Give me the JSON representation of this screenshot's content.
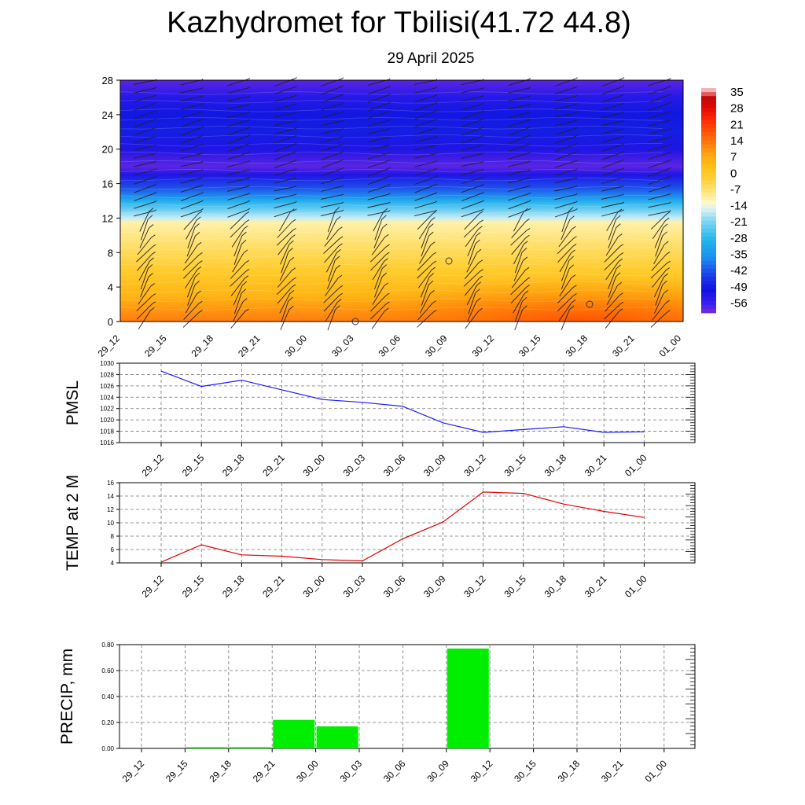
{
  "page": {
    "title": "Kazhydromet for Tbilisi(41.72 44.8)",
    "subtitle": "29 April 2025"
  },
  "time_labels": [
    "29_12",
    "29_15",
    "29_18",
    "29_21",
    "30_00",
    "30_03",
    "30_06",
    "30_09",
    "30_12",
    "30_15",
    "30_18",
    "30_21",
    "01_00"
  ],
  "chart_data": [
    {
      "type": "heatmap",
      "description_of_values": "temperature cross-section with wind barbs",
      "x_categories": [
        "29_12",
        "29_15",
        "29_18",
        "29_21",
        "30_00",
        "30_03",
        "30_06",
        "30_09",
        "30_12",
        "30_15",
        "30_18",
        "30_21",
        "01_00"
      ],
      "y_ticks": [
        0,
        4,
        8,
        12,
        16,
        20,
        24,
        28
      ],
      "ylim": [
        0,
        28
      ],
      "colorbar_ticks": [
        35,
        28,
        21,
        14,
        7,
        0,
        -7,
        -14,
        -21,
        -28,
        -35,
        -42,
        -49,
        -56
      ],
      "colorbar_range": [
        -60,
        38
      ],
      "grid": false
    },
    {
      "type": "line",
      "ylabel": "PMSL",
      "categories": [
        "29_12",
        "29_15",
        "29_18",
        "29_21",
        "30_00",
        "30_03",
        "30_06",
        "30_09",
        "30_12",
        "30_15",
        "30_18",
        "30_21",
        "01_00"
      ],
      "values": [
        1028.6,
        1025.9,
        1027.0,
        1025.3,
        1023.6,
        1023.1,
        1022.4,
        1019.5,
        1017.8,
        1018.3,
        1018.8,
        1017.8,
        1017.9
      ],
      "ylim": [
        1016,
        1030
      ],
      "y_ticks": [
        1016,
        1018,
        1020,
        1022,
        1024,
        1026,
        1028,
        1030
      ],
      "line_color": "#1a1aff",
      "grid": true
    },
    {
      "type": "line",
      "ylabel": "TEMP at 2 M",
      "categories": [
        "29_12",
        "29_15",
        "29_18",
        "29_21",
        "30_00",
        "30_03",
        "30_06",
        "30_09",
        "30_12",
        "30_15",
        "30_18",
        "30_21",
        "01_00"
      ],
      "values": [
        4.1,
        6.7,
        5.2,
        5.0,
        4.5,
        4.3,
        7.6,
        10.1,
        14.6,
        14.4,
        12.8,
        11.7,
        10.8
      ],
      "ylim": [
        4,
        16
      ],
      "y_ticks": [
        4,
        6,
        8,
        10,
        12,
        14,
        16
      ],
      "line_color": "#e00000",
      "grid": true
    },
    {
      "type": "bar",
      "ylabel": "PRECIP, mm",
      "categories": [
        "29_12",
        "29_15",
        "29_18",
        "29_21",
        "30_00",
        "30_03",
        "30_06",
        "30_09",
        "30_12",
        "30_15",
        "30_18",
        "30_21",
        "01_00"
      ],
      "values": [
        0.0,
        0.01,
        0.01,
        0.22,
        0.17,
        0.0,
        0.0,
        0.77,
        0.0,
        0.0,
        0.0,
        0.0,
        0.0
      ],
      "ylim": [
        0,
        0.8
      ],
      "y_ticks": [
        "0.00",
        "0.20",
        "0.40",
        "0.60",
        "0.80"
      ],
      "bar_color": "#00ee00",
      "grid": true
    }
  ]
}
